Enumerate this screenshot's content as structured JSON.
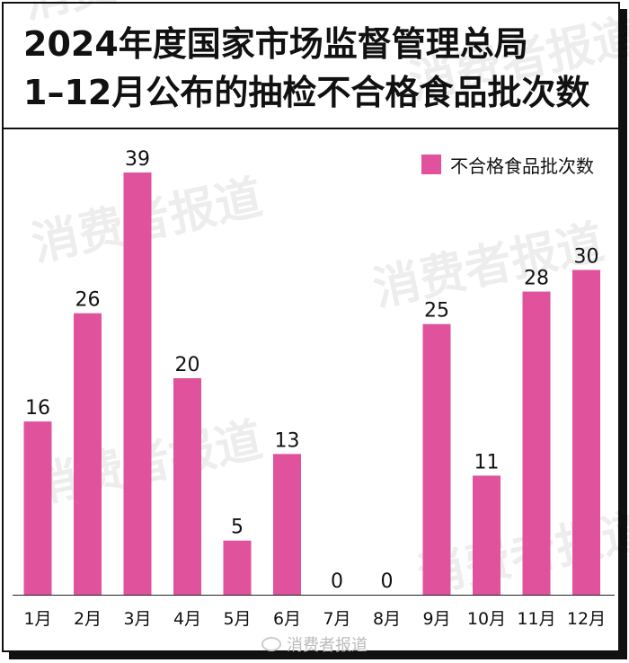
{
  "title_lines": [
    "2024年度国家市场监督管理总局",
    "1–12月公布的抽检不合格食品批次数"
  ],
  "watermark": "消费者报道",
  "bottom_watermark": "消费者报道",
  "colors": {
    "bar": "#e0529c",
    "frame": "#111111",
    "text": "#111111"
  },
  "chart_data": {
    "type": "bar",
    "categories": [
      "1月",
      "2月",
      "3月",
      "4月",
      "5月",
      "6月",
      "7月",
      "8月",
      "9月",
      "10月",
      "11月",
      "12月"
    ],
    "series": [
      {
        "name": "不合格食品批次数",
        "values": [
          16,
          26,
          39,
          20,
          5,
          13,
          0,
          0,
          25,
          11,
          28,
          30
        ]
      }
    ],
    "data_labels": [
      "16",
      "26",
      "39",
      "20",
      "5",
      "13",
      "0",
      "0",
      "25",
      "11",
      "28",
      "30"
    ],
    "title": "2024年度国家市场监督管理总局 1–12月公布的抽检不合格食品批次数",
    "xlabel": "",
    "ylabel": "",
    "ylim": [
      0,
      39
    ],
    "grid": false,
    "legend": "top-right"
  }
}
